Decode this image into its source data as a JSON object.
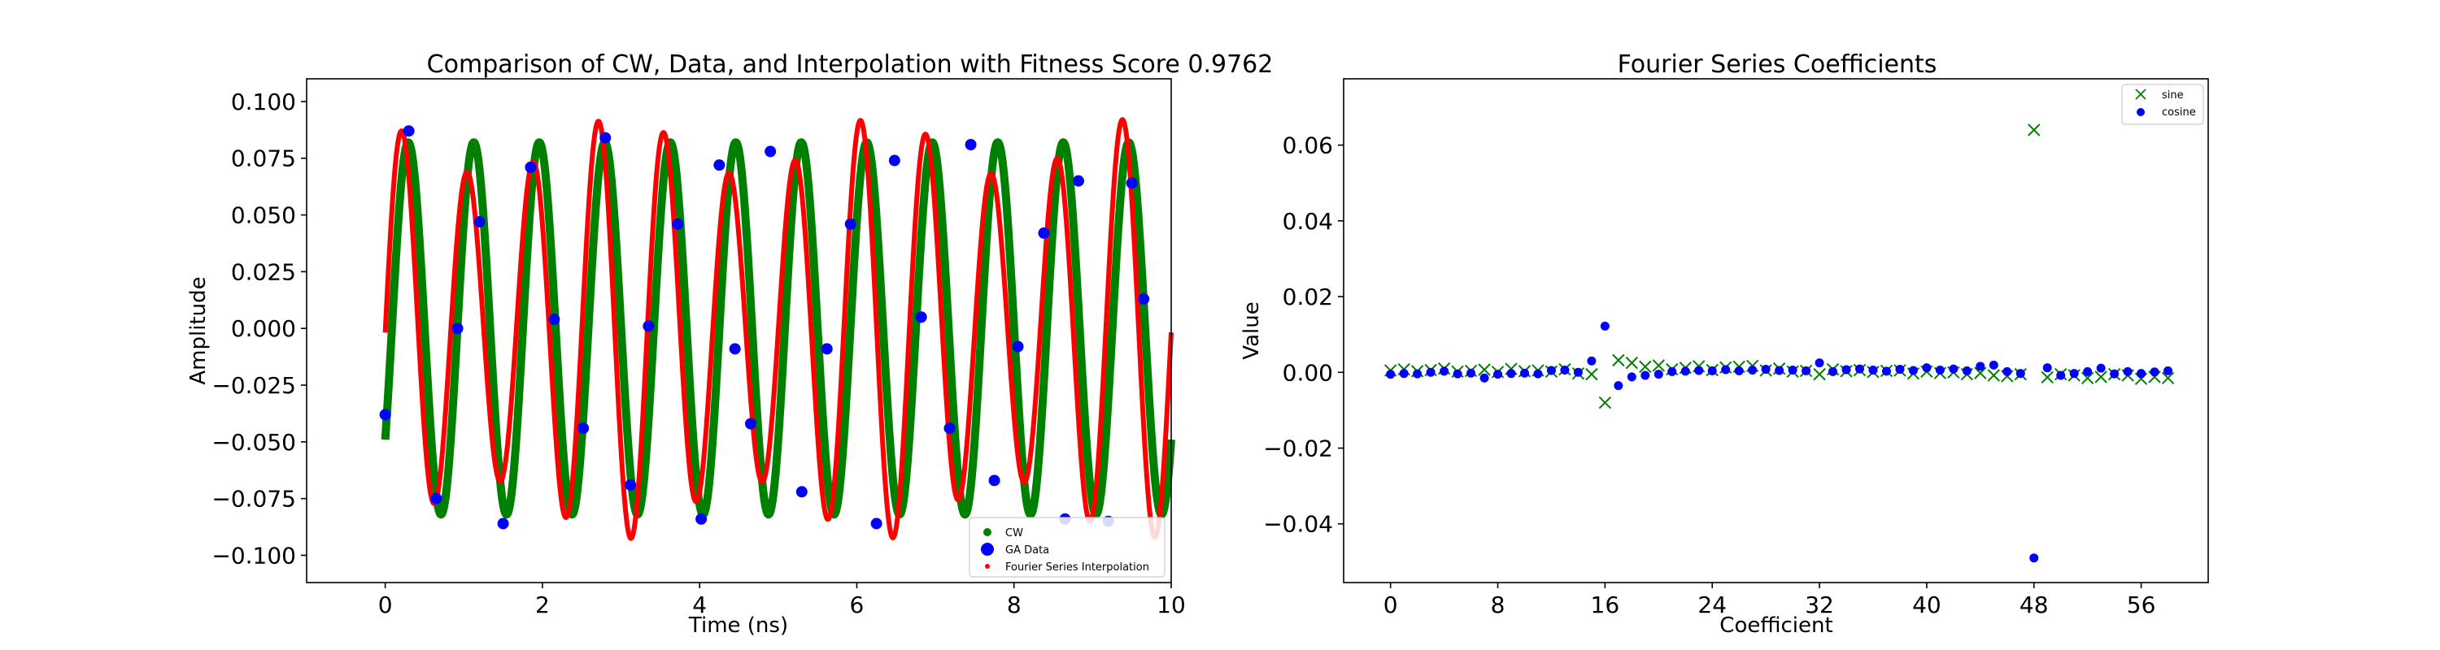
{
  "chart_data": [
    {
      "type": "scatter",
      "title": "Comparison of CW, Data, and Interpolation with Fitness Score 0.9762",
      "xlabel": "Time (ns)",
      "ylabel": "Amplitude",
      "xlim": [
        -1,
        10
      ],
      "ylim": [
        -0.112,
        0.11
      ],
      "xticks": [
        "0",
        "2",
        "4",
        "6",
        "8",
        "10"
      ],
      "yticks": [
        "0.100",
        "0.075",
        "0.050",
        "0.025",
        "0.000",
        "−0.025",
        "−0.050",
        "−0.075",
        "−0.100"
      ],
      "legend_position": "lower-right",
      "colors": {
        "cw": "#008000",
        "ga": "#0000ff",
        "fourier": "#ff0000"
      },
      "series": [
        {
          "name": "CW",
          "kind": "dense-markers",
          "color": "#008000",
          "model": "sinusoid",
          "amplitude": 0.082,
          "frequency_ghz": 1.2,
          "x_range": [
            0,
            10
          ],
          "y_at_x0": -0.049
        },
        {
          "name": "GA Data",
          "kind": "markers",
          "color": "#0000ff",
          "x": [
            0.0,
            0.3,
            0.65,
            0.92,
            1.2,
            1.5,
            1.85,
            2.15,
            2.52,
            2.8,
            3.12,
            3.35,
            3.72,
            4.02,
            4.25,
            4.45,
            4.65,
            4.9,
            5.3,
            5.62,
            5.92,
            6.25,
            6.48,
            6.82,
            7.18,
            7.45,
            7.75,
            8.05,
            8.38,
            8.65,
            8.82,
            9.2,
            9.5,
            9.65
          ],
          "y": [
            -0.038,
            0.087,
            -0.075,
            0.0,
            0.047,
            -0.086,
            0.071,
            0.004,
            -0.044,
            0.084,
            -0.069,
            0.001,
            0.046,
            -0.084,
            0.072,
            -0.009,
            -0.042,
            0.078,
            -0.072,
            -0.009,
            0.046,
            -0.086,
            0.074,
            0.005,
            -0.044,
            0.081,
            -0.067,
            -0.008,
            0.042,
            -0.084,
            0.065,
            -0.085,
            0.064,
            0.013
          ]
        },
        {
          "name": "Fourier Series Interpolation",
          "kind": "dense-markers",
          "color": "#ff0000",
          "model": "sinusoid-with-beat",
          "amplitude": 0.08,
          "frequency_ghz": 1.2,
          "x_range": [
            0,
            10
          ],
          "y_at_x0": -0.02
        }
      ]
    },
    {
      "type": "scatter",
      "title": "Fourier Series Coefficients",
      "xlabel": "Coefficient",
      "ylabel": "Value",
      "xlim": [
        -3.5,
        61
      ],
      "ylim": [
        -0.0555,
        0.0775
      ],
      "xticks": [
        "0",
        "8",
        "16",
        "24",
        "32",
        "40",
        "48",
        "56"
      ],
      "yticks": [
        "0.06",
        "0.04",
        "0.02",
        "0.00",
        "−0.02",
        "−0.04"
      ],
      "legend_position": "top-right",
      "series": [
        {
          "name": "sine",
          "marker": "x",
          "color": "#008000",
          "x": [
            0,
            1,
            2,
            3,
            4,
            5,
            6,
            7,
            8,
            9,
            10,
            11,
            12,
            13,
            14,
            15,
            16,
            17,
            18,
            19,
            20,
            21,
            22,
            23,
            24,
            25,
            26,
            27,
            28,
            29,
            30,
            31,
            32,
            33,
            34,
            35,
            36,
            37,
            38,
            39,
            40,
            41,
            42,
            43,
            44,
            45,
            46,
            47,
            48,
            49,
            50,
            51,
            52,
            53,
            54,
            55,
            56,
            57,
            58
          ],
          "y": [
            0.0005,
            0.0008,
            0.0003,
            0.0006,
            0.001,
            0.0002,
            0.0004,
            0.0007,
            0.0001,
            0.0009,
            0.0003,
            0.0005,
            0.0002,
            0.0008,
            -0.0003,
            -0.0005,
            -0.008,
            0.0032,
            0.0025,
            0.0015,
            0.0018,
            0.0008,
            0.0012,
            0.0016,
            0.0006,
            0.0013,
            0.0015,
            0.0017,
            0.0005,
            0.001,
            0.0002,
            0.0004,
            -0.0005,
            0.0008,
            0.0003,
            0.0006,
            0.0001,
            0.0004,
            0.0005,
            -0.0003,
            0.0002,
            -0.0002,
            0.0,
            -0.0005,
            -0.0002,
            -0.0008,
            -0.001,
            -0.0005,
            0.064,
            -0.0013,
            -0.0005,
            -0.0008,
            -0.0015,
            -0.0012,
            -0.0005,
            -0.0008,
            -0.0017,
            -0.0012,
            -0.0015
          ]
        },
        {
          "name": "cosine",
          "marker": "o",
          "color": "#0000ff",
          "x": [
            0,
            1,
            2,
            3,
            4,
            5,
            6,
            7,
            8,
            9,
            10,
            11,
            12,
            13,
            14,
            15,
            16,
            17,
            18,
            19,
            20,
            21,
            22,
            23,
            24,
            25,
            26,
            27,
            28,
            29,
            30,
            31,
            32,
            33,
            34,
            35,
            36,
            37,
            38,
            39,
            40,
            41,
            42,
            43,
            44,
            45,
            46,
            47,
            48,
            49,
            50,
            51,
            52,
            53,
            54,
            55,
            56,
            57,
            58
          ],
          "y": [
            -0.0005,
            -0.0003,
            -0.0004,
            0.0,
            0.0003,
            -0.0004,
            -0.0002,
            -0.0015,
            -0.0005,
            -0.0003,
            -0.0002,
            -0.0004,
            0.0005,
            0.0006,
            0.0,
            0.003,
            0.0122,
            -0.0035,
            -0.0012,
            -0.0008,
            -0.0005,
            0.0002,
            0.0003,
            0.0005,
            0.0004,
            0.0007,
            0.0004,
            0.0006,
            0.0008,
            0.0005,
            0.0006,
            0.0004,
            0.0025,
            0.0002,
            0.0007,
            0.0009,
            0.0006,
            0.0003,
            0.0008,
            0.0005,
            0.0012,
            0.0006,
            0.0009,
            0.0004,
            0.0016,
            0.0019,
            0.0002,
            -0.0003,
            -0.049,
            0.0012,
            -0.0008,
            -0.0003,
            0.0002,
            0.0011,
            -0.0004,
            0.0002,
            -0.0003,
            0.0001,
            0.0004
          ]
        }
      ]
    }
  ]
}
